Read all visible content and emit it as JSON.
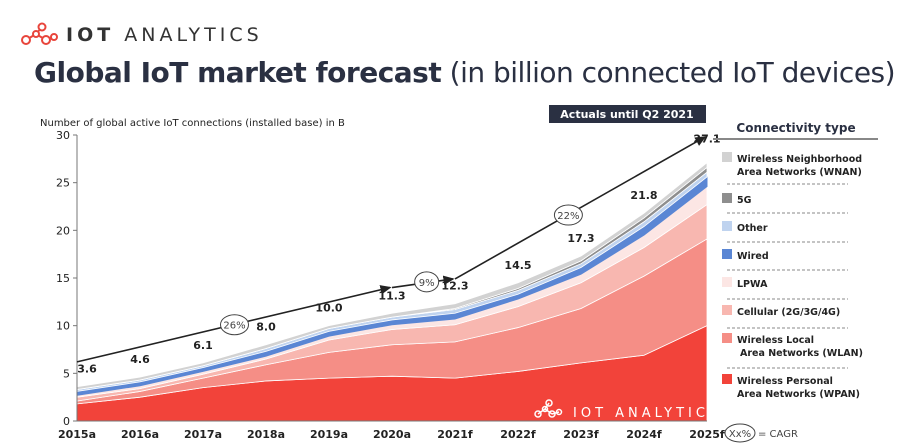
{
  "logo": {
    "brand_bold": "IOT",
    "brand_light": "ANALYTICS"
  },
  "title": {
    "main": "Global IoT market forecast",
    "sub": "(in billion connected IoT devices)"
  },
  "actuals_banner": "Actuals until Q2 2021",
  "cagr_key": {
    "symbol": "Xx%",
    "label": "= CAGR"
  },
  "colors": {
    "WPAN": "#f2433a",
    "WLAN": "#f58e86",
    "Cellular": "#f8b7b0",
    "LPWA": "#fce6e4",
    "Wired": "#5a86d4",
    "Other": "#bfd3ef",
    "5G": "#8e8e8e",
    "WNAN": "#d2d2d2",
    "banner": "#2a3042"
  },
  "chart_data": {
    "type": "area",
    "stacked": true,
    "ylabel": "Number of global active IoT connections (installed base) in B",
    "ylim": [
      0,
      30
    ],
    "yticks": [
      0,
      5,
      10,
      15,
      20,
      25,
      30
    ],
    "categories": [
      "2015a",
      "2016a",
      "2017a",
      "2018a",
      "2019a",
      "2020a",
      "2021f",
      "2022f",
      "2023f",
      "2024f",
      "2025f"
    ],
    "totals": [
      3.6,
      4.6,
      6.1,
      8.0,
      10.0,
      11.3,
      12.3,
      14.5,
      17.3,
      21.8,
      27.1
    ],
    "legend_title": "Connectivity type",
    "legend_position": "right",
    "series": [
      {
        "name": "Wireless Personal Area Networks (WPAN)",
        "key": "WPAN",
        "lines": [
          "Wireless Personal",
          "Area Networks (WPAN)"
        ],
        "values": [
          1.8,
          2.5,
          3.5,
          4.2,
          4.5,
          4.7,
          4.5,
          5.2,
          6.1,
          6.9,
          10.0
        ]
      },
      {
        "name": "Wireless Local Area Networks (WLAN)",
        "key": "WLAN",
        "lines": [
          "Wireless Local",
          "Area Networks (WLAN)"
        ],
        "values": [
          0.3,
          0.6,
          1.0,
          1.7,
          2.7,
          3.3,
          3.8,
          4.6,
          5.7,
          8.3,
          9.1
        ]
      },
      {
        "name": "Cellular (2G/3G/4G)",
        "key": "Cellular",
        "lines": [
          "Cellular (2G/3G/4G)"
        ],
        "values": [
          0.4,
          0.3,
          0.4,
          0.6,
          1.3,
          1.6,
          1.8,
          2.2,
          2.7,
          3.0,
          3.6
        ]
      },
      {
        "name": "LPWA",
        "key": "LPWA",
        "lines": [
          "LPWA"
        ],
        "values": [
          0.2,
          0.3,
          0.3,
          0.3,
          0.4,
          0.5,
          0.6,
          0.8,
          0.9,
          1.3,
          1.9
        ]
      },
      {
        "name": "Wired",
        "key": "Wired",
        "lines": [
          "Wired"
        ],
        "values": [
          0.4,
          0.4,
          0.4,
          0.5,
          0.5,
          0.5,
          0.6,
          0.5,
          0.7,
          0.9,
          1.0
        ]
      },
      {
        "name": "Other",
        "key": "Other",
        "lines": [
          "Other"
        ],
        "values": [
          0.2,
          0.2,
          0.2,
          0.3,
          0.3,
          0.3,
          0.4,
          0.4,
          0.4,
          0.5,
          0.5
        ]
      },
      {
        "name": "5G",
        "key": "5G",
        "lines": [
          "5G"
        ],
        "values": [
          0,
          0,
          0,
          0,
          0,
          0,
          0.1,
          0.2,
          0.3,
          0.4,
          0.5
        ]
      },
      {
        "name": "Wireless Neighborhood Area Networks (WNAN)",
        "key": "WNAN",
        "lines": [
          "Wireless Neighborhood",
          "Area Networks (WNAN)"
        ],
        "values": [
          0.3,
          0.3,
          0.3,
          0.4,
          0.3,
          0.4,
          0.5,
          0.6,
          0.5,
          0.5,
          0.5
        ]
      }
    ],
    "cagr_annotations": [
      {
        "label": "26%",
        "from": "2015a",
        "to": "2020a"
      },
      {
        "label": "9%",
        "from": "2020a",
        "to": "2021f"
      },
      {
        "label": "22%",
        "from": "2021f",
        "to": "2025f"
      }
    ]
  }
}
